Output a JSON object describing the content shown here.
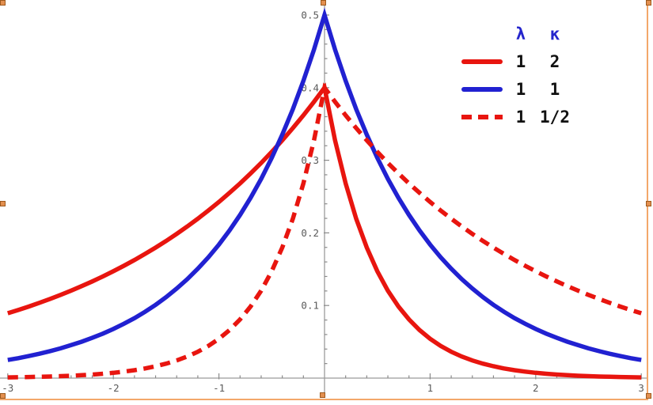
{
  "window": {
    "background": "#ffffff"
  },
  "selection": {
    "frame_color": "#f3a76a",
    "handle_fill": "#e38f4f",
    "handle_border": "#9d5a1e",
    "handle_positions": [
      "top-left",
      "top-center",
      "top-right",
      "middle-left",
      "middle-right",
      "bottom-left",
      "bottom-center",
      "bottom-right"
    ]
  },
  "chart_data": {
    "type": "line",
    "title": "",
    "xlabel": "",
    "ylabel": "",
    "xlim": [
      -3,
      3
    ],
    "ylim": [
      0,
      0.5
    ],
    "grid": false,
    "axis_color": "#9b9b9b",
    "tick_color": "#8a8a8a",
    "tick_label_color": "#5a5a5a",
    "x_ticks": [
      -3,
      -2,
      -1,
      1,
      2,
      3
    ],
    "x_tick_labels": [
      "-3",
      "-2",
      "-1",
      "1",
      "2",
      "3"
    ],
    "y_ticks": [
      0.1,
      0.2,
      0.3,
      0.4,
      0.5
    ],
    "y_tick_labels": [
      "0.1",
      "0.2",
      "0.3",
      "0.4",
      "0.5"
    ],
    "minor_tick_step_x": 0.2,
    "minor_tick_step_y": 0.02,
    "legend": {
      "position": "top-right",
      "headers": [
        "λ",
        "κ"
      ],
      "header_color": "#2525cc",
      "rows": [
        {
          "swatch": "red-solid",
          "param1": "1",
          "param2": "2"
        },
        {
          "swatch": "blue-solid",
          "param1": "1",
          "param2": "1"
        },
        {
          "swatch": "red-dashed",
          "param1": "1",
          "param2": "1/2"
        }
      ]
    },
    "x": [
      -3,
      -2.9,
      -2.8,
      -2.7,
      -2.6,
      -2.5,
      -2.4,
      -2.3,
      -2.2,
      -2.1,
      -2,
      -1.9,
      -1.8,
      -1.7,
      -1.6,
      -1.5,
      -1.4,
      -1.3,
      -1.2,
      -1.1,
      -1,
      -0.9,
      -0.8,
      -0.7,
      -0.6,
      -0.5,
      -0.4,
      -0.3,
      -0.2,
      -0.1,
      0,
      0.1,
      0.2,
      0.3,
      0.4,
      0.5,
      0.6,
      0.7,
      0.8,
      0.9,
      1,
      1.1,
      1.2,
      1.3,
      1.4,
      1.5,
      1.6,
      1.7,
      1.8,
      1.9,
      2,
      2.1,
      2.2,
      2.3,
      2.4,
      2.5,
      2.6,
      2.7,
      2.8,
      2.9,
      3
    ],
    "series": [
      {
        "name": "lambda-1-kappa-2",
        "label": [
          "1",
          "2"
        ],
        "color": "#e8150f",
        "dash": "solid",
        "peak": [
          0,
          0.4
        ],
        "values": [
          0.0893,
          0.0938,
          0.0986,
          0.1037,
          0.109,
          0.1146,
          0.1205,
          0.1267,
          0.1331,
          0.14,
          0.1472,
          0.1547,
          0.1626,
          0.171,
          0.1797,
          0.1889,
          0.1986,
          0.2088,
          0.2195,
          0.2308,
          0.2426,
          0.2551,
          0.2681,
          0.2819,
          0.2963,
          0.3115,
          0.3275,
          0.3443,
          0.3619,
          0.3805,
          0.4,
          0.3275,
          0.2681,
          0.2195,
          0.1797,
          0.1472,
          0.1205,
          0.0986,
          0.0808,
          0.0661,
          0.0541,
          0.0443,
          0.0363,
          0.0297,
          0.0243,
          0.0199,
          0.0163,
          0.0133,
          0.0109,
          0.0089,
          0.0073,
          0.006,
          0.0049,
          0.004,
          0.0033,
          0.0027,
          0.0022,
          0.0018,
          0.0015,
          0.0012,
          0.001
        ]
      },
      {
        "name": "lambda-1-kappa-1",
        "label": [
          "1",
          "1"
        ],
        "color": "#2121d1",
        "dash": "solid",
        "peak": [
          0,
          0.5
        ],
        "values": [
          0.0249,
          0.0275,
          0.0304,
          0.0336,
          0.0371,
          0.041,
          0.0454,
          0.0501,
          0.0554,
          0.0612,
          0.0677,
          0.0748,
          0.0826,
          0.0913,
          0.1009,
          0.1116,
          0.1233,
          0.1363,
          0.1506,
          0.1664,
          0.1839,
          0.2033,
          0.2247,
          0.2483,
          0.2744,
          0.3033,
          0.3352,
          0.3704,
          0.4094,
          0.4524,
          0.5,
          0.4524,
          0.4094,
          0.3704,
          0.3352,
          0.3033,
          0.2744,
          0.2483,
          0.2247,
          0.2033,
          0.1839,
          0.1664,
          0.1506,
          0.1363,
          0.1233,
          0.1116,
          0.1009,
          0.0913,
          0.0826,
          0.0748,
          0.0677,
          0.0612,
          0.0554,
          0.0501,
          0.0454,
          0.041,
          0.0371,
          0.0336,
          0.0304,
          0.0275,
          0.0249
        ]
      },
      {
        "name": "lambda-1-kappa-half",
        "label": [
          "1",
          "1/2"
        ],
        "color": "#e8150f",
        "dash": "dashed",
        "peak": [
          0,
          0.4
        ],
        "values": [
          0.001,
          0.0012,
          0.0015,
          0.0018,
          0.0022,
          0.0027,
          0.0033,
          0.004,
          0.0049,
          0.006,
          0.0073,
          0.0089,
          0.0109,
          0.0133,
          0.0163,
          0.0199,
          0.0243,
          0.0297,
          0.0363,
          0.0443,
          0.0541,
          0.0661,
          0.0808,
          0.0986,
          0.1205,
          0.1472,
          0.1797,
          0.2195,
          0.2681,
          0.3275,
          0.4,
          0.3805,
          0.3619,
          0.3443,
          0.3275,
          0.3115,
          0.2963,
          0.2819,
          0.2681,
          0.2551,
          0.2426,
          0.2308,
          0.2195,
          0.2088,
          0.1986,
          0.1889,
          0.1797,
          0.171,
          0.1626,
          0.1547,
          0.1472,
          0.14,
          0.1331,
          0.1267,
          0.1205,
          0.1146,
          0.109,
          0.1037,
          0.0986,
          0.0938,
          0.0893
        ]
      }
    ]
  }
}
